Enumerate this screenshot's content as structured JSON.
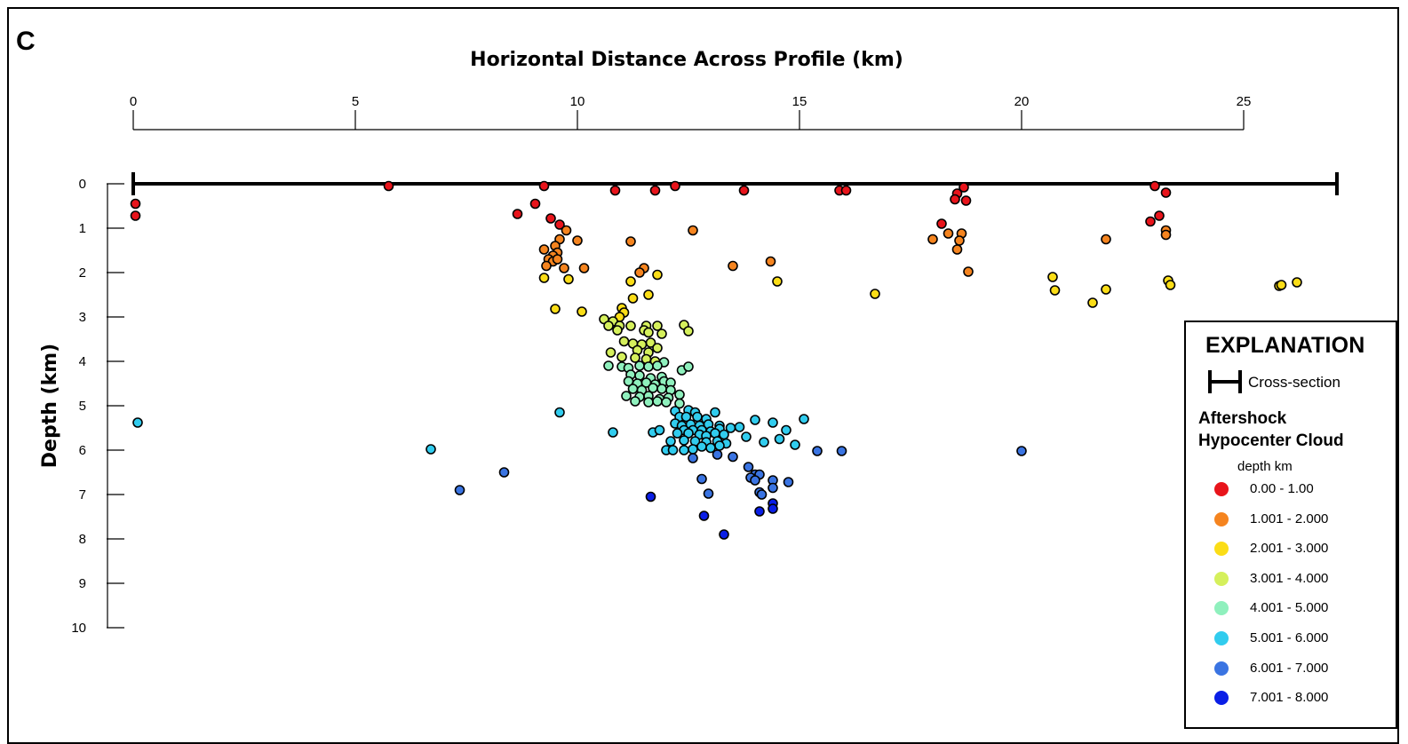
{
  "panel_label": "C",
  "legend": {
    "title": "EXPLANATION",
    "cross_section_label": "Cross-section",
    "subtitle_line1": "Aftershock",
    "subtitle_line2": "Hypocenter Cloud",
    "unit_label": "depth km",
    "items": [
      {
        "label": "0.00 - 1.00",
        "color": "#e8141b"
      },
      {
        "label": "1.001 - 2.000",
        "color": "#f5841f"
      },
      {
        "label": "2.001 - 3.000",
        "color": "#fbdd17"
      },
      {
        "label": "3.001 - 4.000",
        "color": "#d5f05c"
      },
      {
        "label": "4.001 - 5.000",
        "color": "#8ff0bd"
      },
      {
        "label": "5.001 - 6.000",
        "color": "#31ccee"
      },
      {
        "label": "6.001 - 7.000",
        "color": "#3a74e2"
      },
      {
        "label": "7.001 - 8.000",
        "color": "#0a1ee6"
      }
    ]
  },
  "chart_data": {
    "type": "scatter",
    "title": "",
    "xlabel": "Horizontal Distance Across Profile (km)",
    "ylabel": "Depth (km)",
    "xlim": [
      0,
      27
    ],
    "ylim": [
      0,
      10
    ],
    "x_ticks": [
      0,
      5,
      10,
      15,
      20,
      25
    ],
    "y_ticks": [
      0,
      1,
      2,
      3,
      4,
      5,
      6,
      7,
      8,
      9,
      10
    ],
    "x_axis_position": "top",
    "y_axis_inverted": true,
    "grid": false,
    "legend_position": "bottom-right",
    "cross_section": {
      "x_start": 0,
      "x_end": 27.1,
      "depth": 0
    },
    "points": [
      [
        0.05,
        0.45
      ],
      [
        0.05,
        0.72
      ],
      [
        5.75,
        0.05
      ],
      [
        9.25,
        0.05
      ],
      [
        10.85,
        0.15
      ],
      [
        11.75,
        0.15
      ],
      [
        12.2,
        0.05
      ],
      [
        13.75,
        0.15
      ],
      [
        15.9,
        0.15
      ],
      [
        16.05,
        0.15
      ],
      [
        18.7,
        0.08
      ],
      [
        18.55,
        0.22
      ],
      [
        18.5,
        0.35
      ],
      [
        18.75,
        0.38
      ],
      [
        23.0,
        0.05
      ],
      [
        23.25,
        0.2
      ],
      [
        9.05,
        0.45
      ],
      [
        8.65,
        0.68
      ],
      [
        9.4,
        0.78
      ],
      [
        9.6,
        0.92
      ],
      [
        23.1,
        0.72
      ],
      [
        22.9,
        0.85
      ],
      [
        18.2,
        0.9
      ],
      [
        9.75,
        1.05
      ],
      [
        9.6,
        1.25
      ],
      [
        10.0,
        1.28
      ],
      [
        9.5,
        1.4
      ],
      [
        9.25,
        1.48
      ],
      [
        9.55,
        1.55
      ],
      [
        9.45,
        1.62
      ],
      [
        9.35,
        1.7
      ],
      [
        9.45,
        1.75
      ],
      [
        9.55,
        1.7
      ],
      [
        9.3,
        1.85
      ],
      [
        9.7,
        1.9
      ],
      [
        10.15,
        1.9
      ],
      [
        11.2,
        1.3
      ],
      [
        12.6,
        1.05
      ],
      [
        11.5,
        1.9
      ],
      [
        11.4,
        2.0
      ],
      [
        13.5,
        1.85
      ],
      [
        14.35,
        1.75
      ],
      [
        18.8,
        1.98
      ],
      [
        18.0,
        1.25
      ],
      [
        18.35,
        1.12
      ],
      [
        18.65,
        1.12
      ],
      [
        18.6,
        1.28
      ],
      [
        18.55,
        1.48
      ],
      [
        21.9,
        1.25
      ],
      [
        23.25,
        1.05
      ],
      [
        23.25,
        1.15
      ],
      [
        9.25,
        2.12
      ],
      [
        9.8,
        2.15
      ],
      [
        11.2,
        2.2
      ],
      [
        11.8,
        2.05
      ],
      [
        11.6,
        2.5
      ],
      [
        11.25,
        2.58
      ],
      [
        14.5,
        2.2
      ],
      [
        16.7,
        2.48
      ],
      [
        20.7,
        2.1
      ],
      [
        20.75,
        2.4
      ],
      [
        21.9,
        2.38
      ],
      [
        21.6,
        2.68
      ],
      [
        23.3,
        2.18
      ],
      [
        23.35,
        2.28
      ],
      [
        25.8,
        2.3
      ],
      [
        25.85,
        2.28
      ],
      [
        26.2,
        2.22
      ],
      [
        9.5,
        2.82
      ],
      [
        10.1,
        2.88
      ],
      [
        11.0,
        2.8
      ],
      [
        11.05,
        2.9
      ],
      [
        10.95,
        3.0
      ],
      [
        10.6,
        3.05
      ],
      [
        10.8,
        3.1
      ],
      [
        10.7,
        3.2
      ],
      [
        10.95,
        3.2
      ],
      [
        11.2,
        3.2
      ],
      [
        11.55,
        3.2
      ],
      [
        11.8,
        3.2
      ],
      [
        12.4,
        3.18
      ],
      [
        10.9,
        3.3
      ],
      [
        11.5,
        3.3
      ],
      [
        11.6,
        3.35
      ],
      [
        11.9,
        3.38
      ],
      [
        12.5,
        3.32
      ],
      [
        11.05,
        3.55
      ],
      [
        11.25,
        3.6
      ],
      [
        11.45,
        3.62
      ],
      [
        11.65,
        3.58
      ],
      [
        11.8,
        3.7
      ],
      [
        11.35,
        3.75
      ],
      [
        11.6,
        3.8
      ],
      [
        10.75,
        3.8
      ],
      [
        11.0,
        3.9
      ],
      [
        11.3,
        3.92
      ],
      [
        11.55,
        3.95
      ],
      [
        11.75,
        4.0
      ],
      [
        11.95,
        4.02
      ],
      [
        10.7,
        4.1
      ],
      [
        11.0,
        4.12
      ],
      [
        11.15,
        4.15
      ],
      [
        11.4,
        4.1
      ],
      [
        11.6,
        4.12
      ],
      [
        11.8,
        4.1
      ],
      [
        12.35,
        4.2
      ],
      [
        12.5,
        4.12
      ],
      [
        11.2,
        4.3
      ],
      [
        11.4,
        4.32
      ],
      [
        11.65,
        4.38
      ],
      [
        11.9,
        4.35
      ],
      [
        11.15,
        4.45
      ],
      [
        11.35,
        4.5
      ],
      [
        11.55,
        4.48
      ],
      [
        11.75,
        4.52
      ],
      [
        11.95,
        4.45
      ],
      [
        12.1,
        4.48
      ],
      [
        11.25,
        4.62
      ],
      [
        11.45,
        4.65
      ],
      [
        11.7,
        4.6
      ],
      [
        11.9,
        4.62
      ],
      [
        12.1,
        4.65
      ],
      [
        11.1,
        4.78
      ],
      [
        11.4,
        4.8
      ],
      [
        11.6,
        4.78
      ],
      [
        11.85,
        4.85
      ],
      [
        12.05,
        4.82
      ],
      [
        12.3,
        4.75
      ],
      [
        11.3,
        4.9
      ],
      [
        11.6,
        4.92
      ],
      [
        11.8,
        4.9
      ],
      [
        12.0,
        4.92
      ],
      [
        12.3,
        4.95
      ],
      [
        12.2,
        5.12
      ],
      [
        12.5,
        5.1
      ],
      [
        12.65,
        5.15
      ],
      [
        13.1,
        5.15
      ],
      [
        12.3,
        5.25
      ],
      [
        12.45,
        5.25
      ],
      [
        12.7,
        5.25
      ],
      [
        12.9,
        5.3
      ],
      [
        14.0,
        5.32
      ],
      [
        14.4,
        5.38
      ],
      [
        15.1,
        5.3
      ],
      [
        12.2,
        5.4
      ],
      [
        12.35,
        5.45
      ],
      [
        12.55,
        5.42
      ],
      [
        12.75,
        5.45
      ],
      [
        12.95,
        5.42
      ],
      [
        13.2,
        5.45
      ],
      [
        13.45,
        5.5
      ],
      [
        13.65,
        5.48
      ],
      [
        12.4,
        5.55
      ],
      [
        12.6,
        5.55
      ],
      [
        12.8,
        5.55
      ],
      [
        13.0,
        5.58
      ],
      [
        13.2,
        5.52
      ],
      [
        12.25,
        5.62
      ],
      [
        12.5,
        5.62
      ],
      [
        12.75,
        5.65
      ],
      [
        12.9,
        5.68
      ],
      [
        13.1,
        5.62
      ],
      [
        13.3,
        5.65
      ],
      [
        14.7,
        5.55
      ],
      [
        13.8,
        5.7
      ],
      [
        14.55,
        5.75
      ],
      [
        12.4,
        5.78
      ],
      [
        12.65,
        5.8
      ],
      [
        12.9,
        5.82
      ],
      [
        13.15,
        5.8
      ],
      [
        13.35,
        5.85
      ],
      [
        14.2,
        5.82
      ],
      [
        14.9,
        5.88
      ],
      [
        0.1,
        5.38
      ],
      [
        9.6,
        5.15
      ],
      [
        10.8,
        5.6
      ],
      [
        11.7,
        5.6
      ],
      [
        11.85,
        5.55
      ],
      [
        12.1,
        5.8
      ],
      [
        12.0,
        6.0
      ],
      [
        12.15,
        6.0
      ],
      [
        12.4,
        6.0
      ],
      [
        12.6,
        5.98
      ],
      [
        12.8,
        5.92
      ],
      [
        13.0,
        5.95
      ],
      [
        13.2,
        5.9
      ],
      [
        6.7,
        5.98
      ],
      [
        20.0,
        6.02
      ],
      [
        15.4,
        6.02
      ],
      [
        15.95,
        6.02
      ],
      [
        12.6,
        6.18
      ],
      [
        13.15,
        6.1
      ],
      [
        13.5,
        6.15
      ],
      [
        13.85,
        6.38
      ],
      [
        14.0,
        6.55
      ],
      [
        14.1,
        6.55
      ],
      [
        13.9,
        6.62
      ],
      [
        14.0,
        6.68
      ],
      [
        14.4,
        6.68
      ],
      [
        14.75,
        6.72
      ],
      [
        12.8,
        6.65
      ],
      [
        14.4,
        6.85
      ],
      [
        14.1,
        6.95
      ],
      [
        14.15,
        7.0
      ],
      [
        12.95,
        6.98
      ],
      [
        7.35,
        6.9
      ],
      [
        8.35,
        6.5
      ],
      [
        11.65,
        7.05
      ],
      [
        14.4,
        7.2
      ],
      [
        14.4,
        7.32
      ],
      [
        14.1,
        7.38
      ],
      [
        12.85,
        7.48
      ],
      [
        13.3,
        7.9
      ]
    ]
  }
}
